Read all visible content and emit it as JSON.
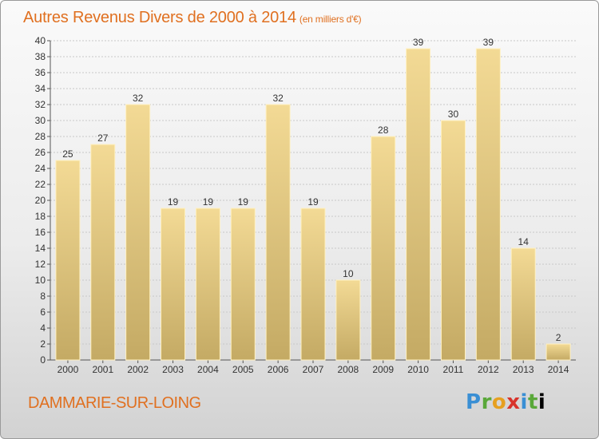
{
  "header": {
    "title": "Autres Revenus Divers de 2000 à 2014",
    "unit": "(en milliers d'€)"
  },
  "footer": {
    "commune": "DAMMARIE-SUR-LOING",
    "logo": [
      "P",
      "r",
      "o",
      "x",
      "i",
      "t",
      "i"
    ]
  },
  "colors": {
    "accent": "#e07020",
    "bar_top": "#f3da95",
    "bar_bottom": "#c4aa64",
    "grid": "#c8c8c8",
    "text": "#333333"
  },
  "chart_data": {
    "type": "bar",
    "title": "Autres Revenus Divers de 2000 à 2014",
    "subtitle": "(en milliers d'€)",
    "xlabel": "",
    "ylabel": "",
    "ylim": [
      0,
      40
    ],
    "ytick_step": 2,
    "grid": true,
    "categories": [
      "2000",
      "2001",
      "2002",
      "2003",
      "2004",
      "2005",
      "2006",
      "2007",
      "2008",
      "2009",
      "2010",
      "2011",
      "2012",
      "2013",
      "2014"
    ],
    "values": [
      25,
      27,
      32,
      19,
      19,
      19,
      32,
      19,
      10,
      28,
      39,
      30,
      39,
      14,
      2
    ]
  }
}
